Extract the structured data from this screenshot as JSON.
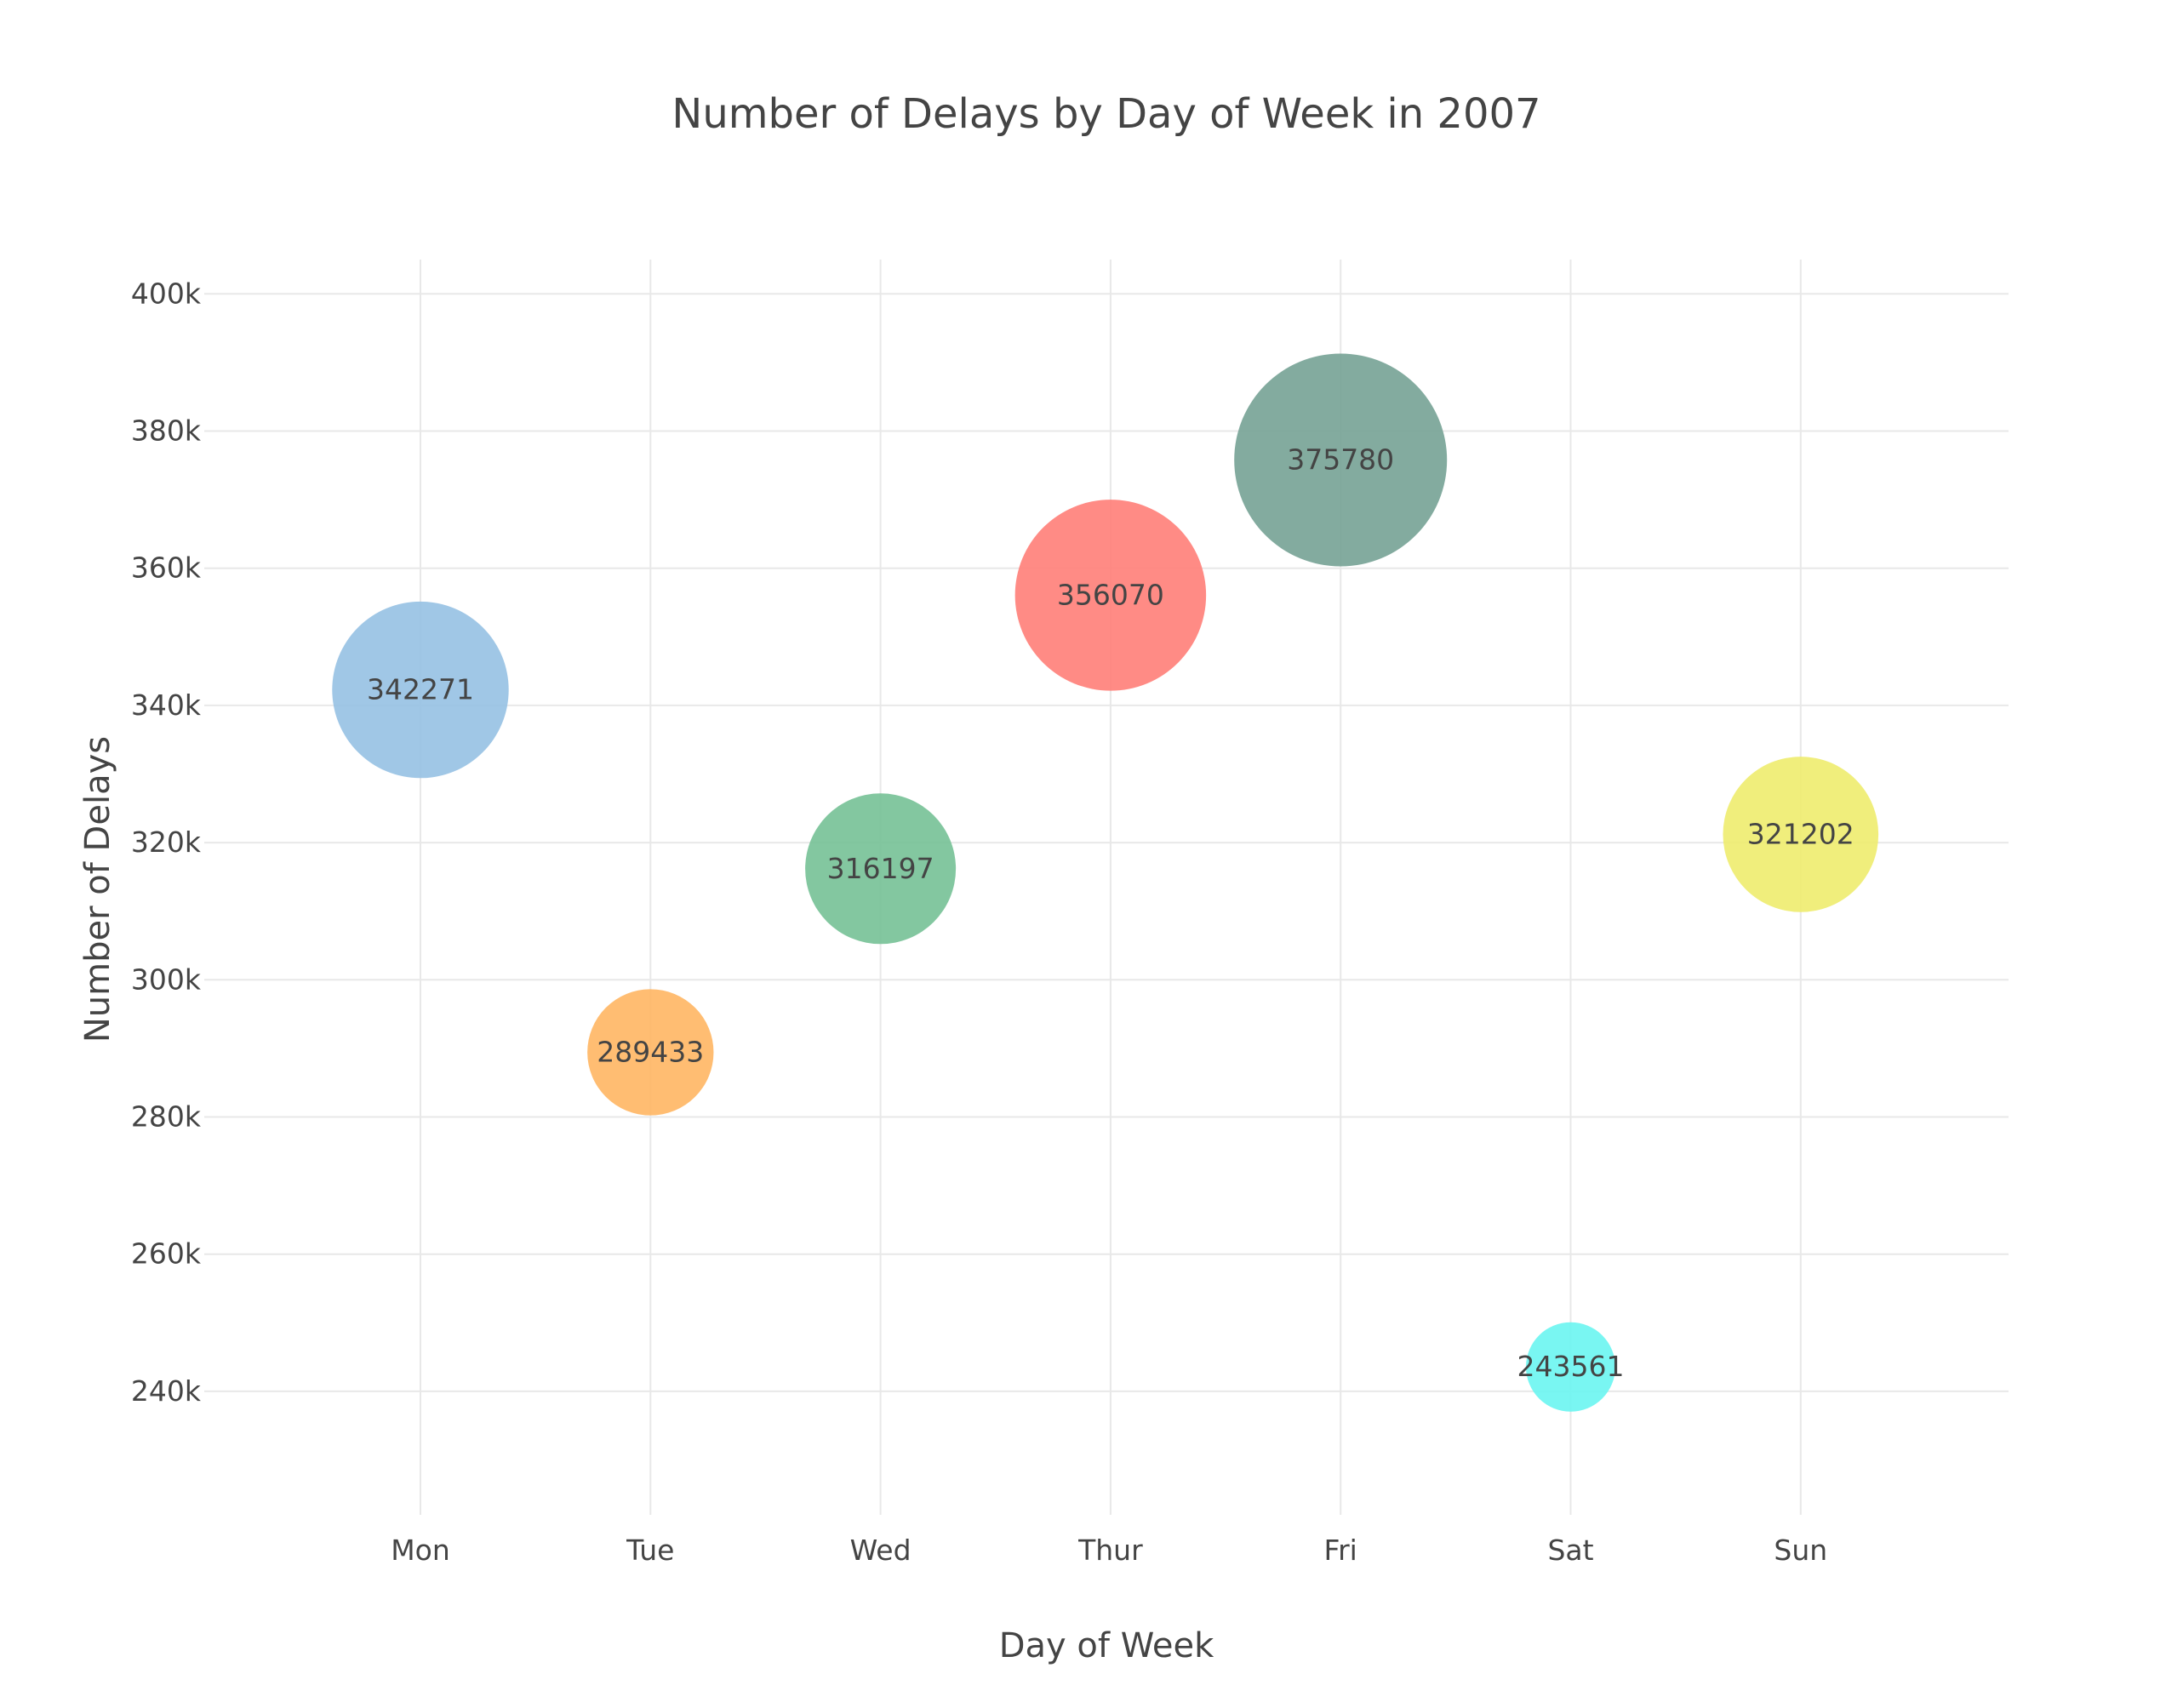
{
  "chart_data": {
    "type": "scatter",
    "title": "Number of Delays by Day of Week in 2007",
    "xlabel": "Day of Week",
    "ylabel": "Number of Delays",
    "categories": [
      "Mon",
      "Tue",
      "Wed",
      "Thur",
      "Fri",
      "Sat",
      "Sun"
    ],
    "values": [
      342271,
      289433,
      316197,
      356070,
      375780,
      243561,
      321202
    ],
    "point_labels": [
      "342271",
      "289433",
      "316197",
      "356070",
      "375780",
      "243561",
      "321202"
    ],
    "colors": [
      "#93bfe3",
      "#ffb45f",
      "#72bf93",
      "#ff7b74",
      "#729f92",
      "#66f5f0",
      "#eeec6a"
    ],
    "bubble_size": "proportional to value",
    "ylim": [
      222000,
      405000
    ],
    "yticks": [
      240000,
      260000,
      280000,
      300000,
      320000,
      340000,
      360000,
      380000,
      400000
    ],
    "ytick_labels": [
      "240k",
      "260k",
      "280k",
      "300k",
      "320k",
      "340k",
      "360k",
      "380k",
      "400k"
    ],
    "grid": true,
    "legend": "none"
  }
}
